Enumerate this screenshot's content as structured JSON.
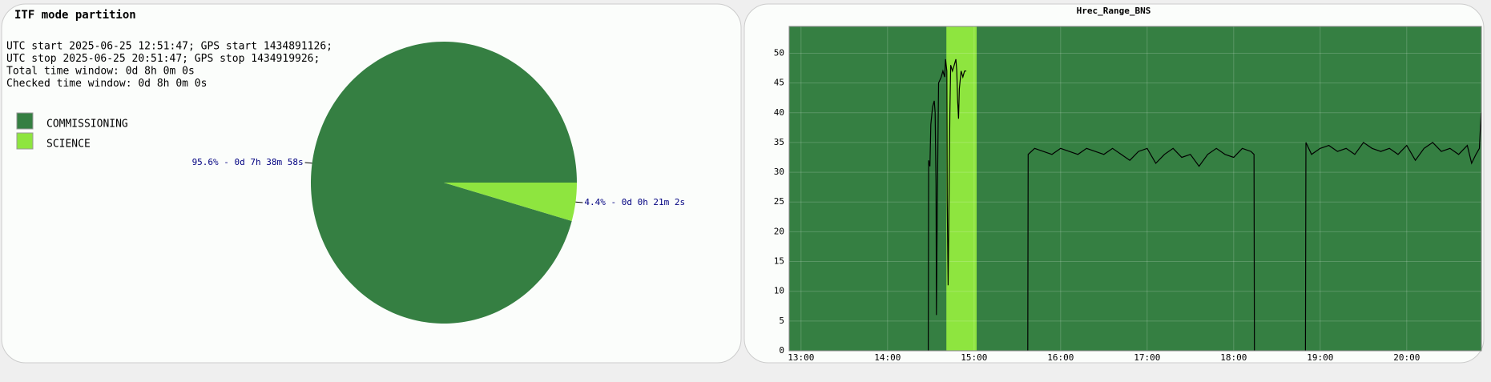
{
  "chart_data": [
    {
      "type": "pie",
      "title": "ITF mode partition",
      "notes": [
        "UTC start 2025-06-25 12:51:47; GPS start 1434891126;",
        "UTC stop 2025-06-25 20:51:47; GPS stop 1434919926;",
        "Total time window: 0d 8h 0m 0s",
        "Checked time window: 0d 8h 0m 0s"
      ],
      "categories": [
        "COMMISSIONING",
        "SCIENCE"
      ],
      "values": [
        95.6,
        4.4
      ],
      "value_labels": [
        "95.6% - 0d 7h 38m 58s",
        "4.4% - 0d 0h 21m 2s"
      ],
      "colors": [
        "#357f42",
        "#8ee53f"
      ]
    },
    {
      "type": "line",
      "title": "Hrec_Range_BNS",
      "color": "#000000",
      "background": "#357f42",
      "span": [
        14.68,
        15.03
      ],
      "span_color": "#8ee53f",
      "grid": true,
      "xlim": [
        12.863,
        20.863
      ],
      "ylim": [
        0,
        54.5
      ],
      "xticks": [
        {
          "value": 13,
          "label": "13:00"
        },
        {
          "value": 14,
          "label": "14:00"
        },
        {
          "value": 15,
          "label": "15:00"
        },
        {
          "value": 16,
          "label": "16:00"
        },
        {
          "value": 17,
          "label": "17:00"
        },
        {
          "value": 18,
          "label": "18:00"
        },
        {
          "value": 19,
          "label": "19:00"
        },
        {
          "value": 20,
          "label": "20:00"
        }
      ],
      "yticks": [
        0,
        5,
        10,
        15,
        20,
        25,
        30,
        35,
        40,
        45,
        50
      ],
      "x": [
        14.47,
        14.475,
        14.49,
        14.5,
        14.52,
        14.54,
        14.55,
        14.56,
        14.565,
        14.575,
        14.59,
        14.62,
        14.64,
        14.66,
        14.67,
        14.685,
        14.69,
        14.7,
        14.71,
        14.72,
        14.73,
        14.75,
        14.77,
        14.79,
        14.8,
        14.81,
        14.82,
        14.83,
        14.85,
        14.87,
        14.89,
        14.91,
        14.95,
        15.62,
        15.625,
        15.7,
        15.8,
        15.9,
        16.0,
        16.1,
        16.2,
        16.3,
        16.4,
        16.5,
        16.6,
        16.7,
        16.8,
        16.9,
        17.0,
        17.1,
        17.2,
        17.3,
        17.4,
        17.5,
        17.6,
        17.7,
        17.8,
        17.9,
        18.0,
        18.1,
        18.2,
        18.235,
        18.24,
        18.5,
        18.83,
        18.835,
        18.9,
        19.0,
        19.1,
        19.2,
        19.3,
        19.4,
        19.5,
        19.6,
        19.7,
        19.8,
        19.9,
        20.0,
        20.1,
        20.2,
        20.3,
        20.4,
        20.5,
        20.6,
        20.7,
        20.75,
        20.8,
        20.84,
        20.86
      ],
      "values": [
        0,
        32,
        31,
        38,
        41,
        42,
        40,
        28,
        6,
        25,
        45,
        46,
        47,
        46,
        49,
        47,
        25,
        11,
        25,
        40,
        48,
        47,
        48,
        49,
        47,
        42,
        39,
        44,
        47,
        46,
        47,
        47,
        null,
        0,
        33,
        34,
        33.5,
        33,
        34,
        33.5,
        33,
        34,
        33.5,
        33,
        34,
        33,
        32,
        33.5,
        34,
        31.5,
        33,
        34,
        32.5,
        33,
        31,
        33,
        34,
        33,
        32.5,
        34,
        33.5,
        33,
        0,
        null,
        0,
        35,
        33,
        34,
        34.5,
        33.5,
        34,
        33,
        35,
        34,
        33.5,
        34,
        33,
        34.5,
        32,
        34,
        35,
        33.5,
        34,
        33,
        34.5,
        31.5,
        33,
        34,
        40
      ]
    }
  ]
}
